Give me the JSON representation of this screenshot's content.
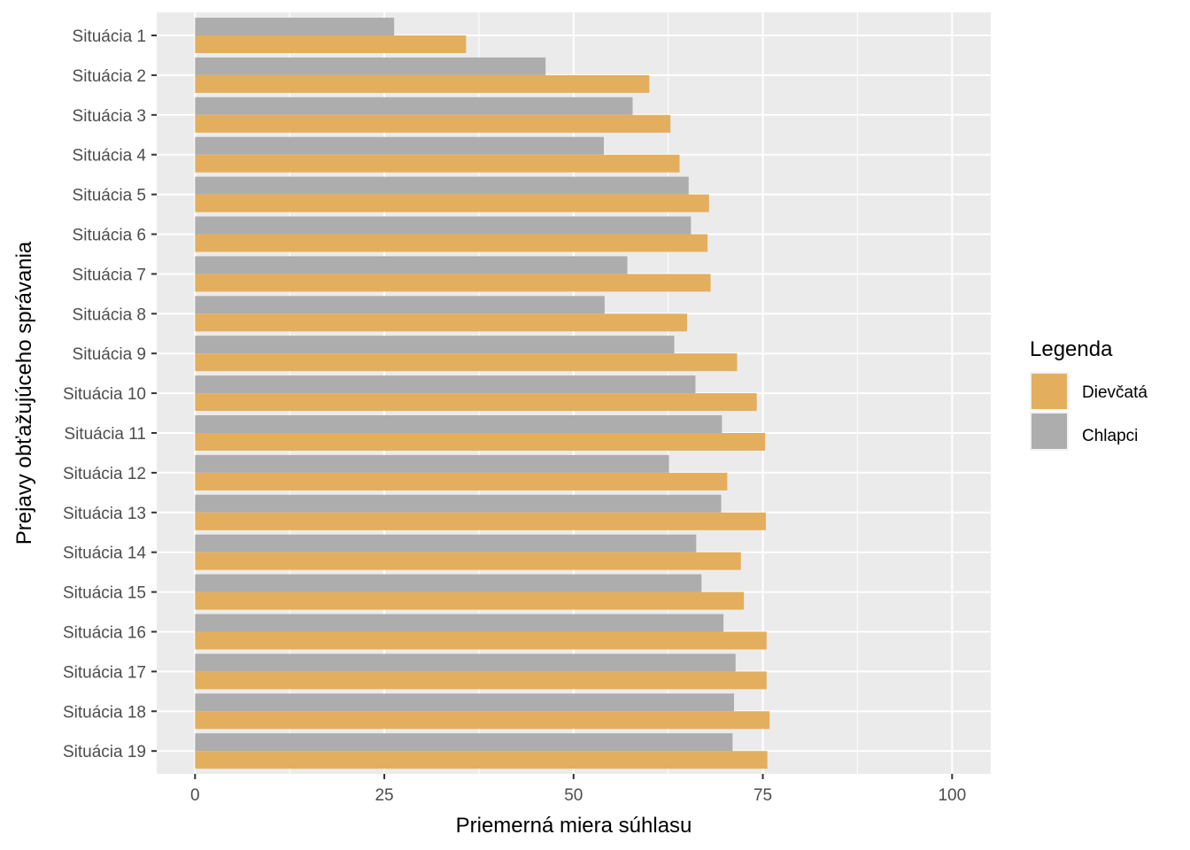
{
  "chart_data": {
    "type": "bar",
    "orientation": "horizontal",
    "xlabel": "Priemerná miera súhlasu",
    "ylabel": "Prejavy obťažujúceho správania",
    "xlim": [
      -5,
      105
    ],
    "x_ticks": [
      "0",
      "25",
      "50",
      "75",
      "100"
    ],
    "x_tick_values": [
      0,
      25,
      50,
      75,
      100
    ],
    "grid": true,
    "legend": {
      "title": "Legenda",
      "position": "right"
    },
    "categories": [
      "Situácia 1",
      "Situácia 2",
      "Situácia 3",
      "Situácia 4",
      "Situácia 5",
      "Situácia 6",
      "Situácia 7",
      "Situácia 8",
      "Situácia 9",
      "Situácia 10",
      "Situácia 11",
      "Situácia 12",
      "Situácia 13",
      "Situácia 14",
      "Situácia 15",
      "Situácia 16",
      "Situácia 17",
      "Situácia 18",
      "Situácia 19"
    ],
    "series": [
      {
        "name": "Dievčatá",
        "color": "#E3AF5E",
        "values": [
          35.8,
          60.0,
          62.8,
          64.0,
          67.9,
          67.7,
          68.1,
          65.0,
          71.6,
          74.2,
          75.3,
          70.3,
          75.4,
          72.1,
          72.5,
          75.5,
          75.5,
          75.9,
          75.6
        ]
      },
      {
        "name": "Chlapci",
        "color": "#ADADAD",
        "values": [
          26.3,
          46.3,
          57.8,
          54.0,
          65.2,
          65.5,
          57.1,
          54.1,
          63.3,
          66.1,
          69.6,
          62.6,
          69.5,
          66.2,
          66.9,
          69.8,
          71.4,
          71.2,
          71.0
        ]
      }
    ]
  }
}
